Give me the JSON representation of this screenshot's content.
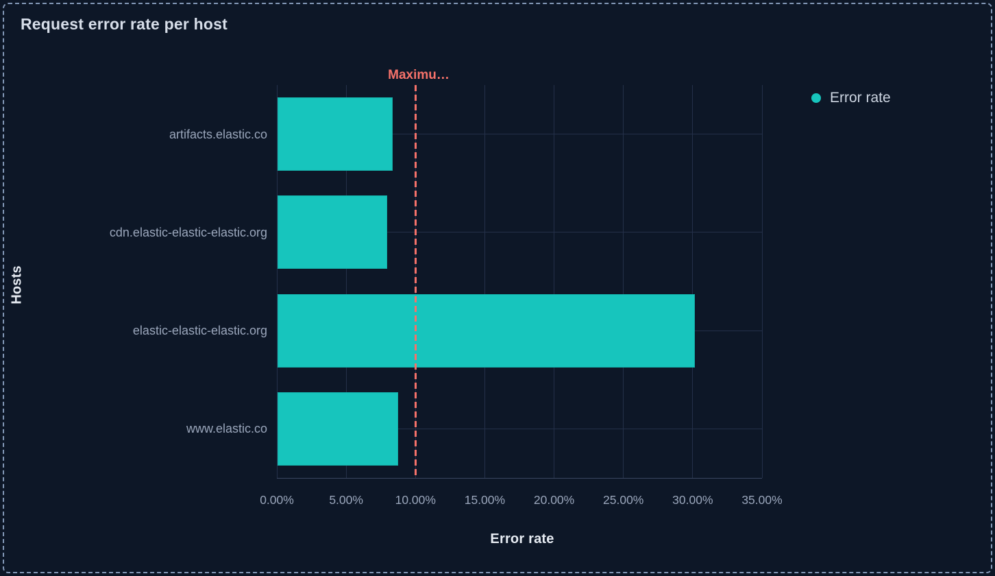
{
  "panel": {
    "title": "Request error rate per host"
  },
  "legend": {
    "items": [
      {
        "label": "Error rate",
        "color": "#17c5bd"
      }
    ]
  },
  "chart_data": {
    "type": "bar",
    "orientation": "horizontal",
    "title": "Request error rate per host",
    "categories": [
      "artifacts.elastic.co",
      "cdn.elastic-elastic-elastic.org",
      "elastic-elastic-elastic.org",
      "www.elastic.co"
    ],
    "series": [
      {
        "name": "Error rate",
        "values": [
          8.3,
          7.9,
          30.1,
          8.7
        ],
        "color": "#17c5bd"
      }
    ],
    "value_unit": "%",
    "xlabel": "Error rate",
    "ylabel": "Hosts",
    "xlim": [
      0,
      35
    ],
    "x_tick_values": [
      0,
      5,
      10,
      15,
      20,
      25,
      30,
      35
    ],
    "x_tick_labels": [
      "0.00%",
      "5.00%",
      "10.00%",
      "15.00%",
      "20.00%",
      "25.00%",
      "30.00%",
      "35.00%"
    ],
    "grid": true,
    "legend_position": "top-right",
    "threshold": {
      "value": 10,
      "label": "Maximu…",
      "color": "#f6726a",
      "style": "dashed"
    },
    "colors": {
      "background": "#0d1727",
      "bar": "#17c5bd",
      "gridline": "#243049",
      "axis_line": "#3a4660",
      "tick_text": "#9aa6bb",
      "title_text": "#d7dee9",
      "threshold": "#f6726a",
      "panel_border": "#8398b7"
    }
  }
}
